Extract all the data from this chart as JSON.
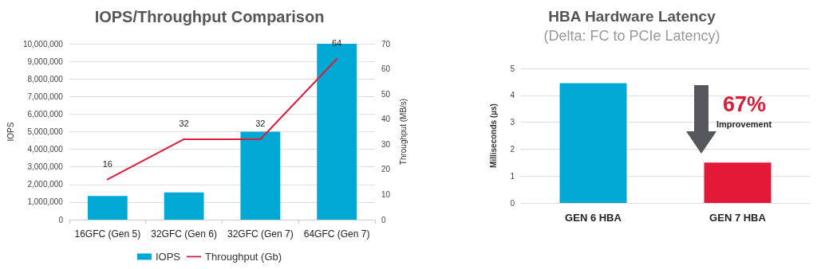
{
  "chart_data": [
    {
      "type": "bar",
      "title": "IOPS/Throughput Comparison",
      "ylabel": "IOPS",
      "y2label": "Throughput (MB/s)",
      "categories": [
        "16GFC (Gen 5)",
        "32GFC (Gen 6)",
        "32GFC (Gen 7)",
        "64GFC (Gen 7)"
      ],
      "series": [
        {
          "name": "IOPS",
          "color": "#00a8d4",
          "values": [
            1350000,
            1550000,
            5000000,
            10000000
          ]
        },
        {
          "name": "Throughput (Gb)",
          "type": "line",
          "axis": "y2",
          "color": "#d71f3c",
          "values": [
            16,
            32,
            32,
            64
          ],
          "data_labels": true
        }
      ],
      "ylim": [
        0,
        10000000
      ],
      "yticks": [
        0,
        {
          "value": 1000000,
          "label": "1,000,000"
        },
        {
          "value": 2000000,
          "label": "2,000,000"
        },
        {
          "value": 3000000,
          "label": "3,000,000"
        },
        {
          "value": 4000000,
          "label": "4,000,000"
        },
        {
          "value": 5000000,
          "label": "5,000,000"
        },
        {
          "value": 6000000,
          "label": "6,000,000"
        },
        {
          "value": 7000000,
          "label": "7,000,000"
        },
        {
          "value": 8000000,
          "label": "8,000,000"
        },
        {
          "value": 9000000,
          "label": "9,000,000"
        },
        {
          "value": 10000000,
          "label": "10,000,000"
        }
      ],
      "y2lim": [
        0,
        70
      ],
      "y2ticks": [
        0,
        10,
        20,
        30,
        40,
        50,
        60,
        70
      ],
      "grid": "y",
      "legend": "bottom",
      "marker": "none"
    },
    {
      "type": "bar",
      "title": "HBA Hardware Latency",
      "subtitle": "(Delta: FC to PCIe Latency)",
      "ylabel": "Milliseconds (µs)",
      "categories": [
        "GEN 6 HBA",
        "GEN 7 HBA"
      ],
      "values": [
        4.45,
        1.5
      ],
      "colors": [
        "#00a8d4",
        "#e31937"
      ],
      "ylim": [
        0,
        5
      ],
      "yticks": [
        0,
        1,
        2,
        3,
        4,
        5
      ],
      "grid": "y",
      "annotations": [
        "67%",
        "Improvement"
      ]
    }
  ]
}
